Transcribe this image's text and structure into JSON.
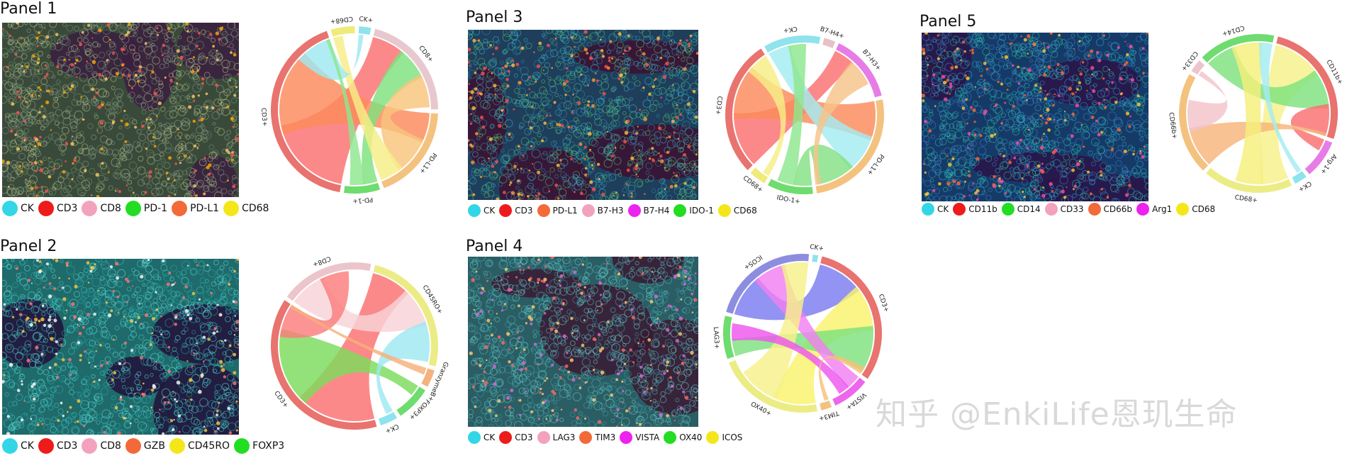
{
  "panels": [
    {
      "title": "Panel 1",
      "legend": [
        {
          "label": "CK",
          "color": "#33d6e6"
        },
        {
          "label": "CD3",
          "color": "#ee1b1b"
        },
        {
          "label": "CD8",
          "color": "#f3a2bd"
        },
        {
          "label": "PD-1",
          "color": "#22dd22"
        },
        {
          "label": "PD-L1",
          "color": "#f26a3a"
        },
        {
          "label": "CD68",
          "color": "#f5e619"
        }
      ],
      "chord_groups": [
        {
          "label": "CD8+",
          "color": "#e8c8cf",
          "value": 18
        },
        {
          "label": "PD-L1+",
          "color": "#f4c27f",
          "value": 16
        },
        {
          "label": "PD-1+",
          "color": "#6edc6e",
          "value": 6
        },
        {
          "label": "CD3+",
          "color": "#e8736f",
          "value": 36
        },
        {
          "label": "CD68+",
          "color": "#f0ea7a",
          "value": 4
        },
        {
          "label": "CK+",
          "color": "#8ee3ec",
          "value": 2
        }
      ],
      "chord_links": [
        {
          "from": 3,
          "to": 0,
          "color": "#fb6f6f"
        },
        {
          "from": 3,
          "to": 1,
          "color": "#fb8a5a"
        },
        {
          "from": 2,
          "to": 0,
          "color": "#7ee27e"
        },
        {
          "from": 1,
          "to": 0,
          "color": "#f9c47d"
        },
        {
          "from": 4,
          "to": 1,
          "color": "#f6ee86"
        },
        {
          "from": 5,
          "to": 3,
          "color": "#9fe8f0"
        },
        {
          "from": 2,
          "to": 3,
          "color": "#8ee68e"
        }
      ]
    },
    {
      "title": "Panel 2",
      "legend": [
        {
          "label": "CK",
          "color": "#33d6e6"
        },
        {
          "label": "CD3",
          "color": "#ee1b1b"
        },
        {
          "label": "CD8",
          "color": "#f3a2bd"
        },
        {
          "label": "GZB",
          "color": "#f26a3a"
        },
        {
          "label": "CD45RO",
          "color": "#f5e619"
        },
        {
          "label": "FOXP3",
          "color": "#22dd22"
        }
      ],
      "chord_groups": [
        {
          "label": "CD45RO+",
          "color": "#ecec86",
          "value": 22
        },
        {
          "label": "GranzymeB+",
          "color": "#f4b27f",
          "value": 3
        },
        {
          "label": "FOXP3+",
          "color": "#6edc6e",
          "value": 6
        },
        {
          "label": "CK+",
          "color": "#8ee3ec",
          "value": 3
        },
        {
          "label": "CD3+",
          "color": "#e8736f",
          "value": 34
        },
        {
          "label": "CD8+",
          "color": "#ecc5cc",
          "value": 16
        }
      ],
      "chord_links": [
        {
          "from": 4,
          "to": 0,
          "color": "#fb6f6f"
        },
        {
          "from": 5,
          "to": 0,
          "color": "#f8d3d8"
        },
        {
          "from": 4,
          "to": 2,
          "color": "#7bdc5b"
        },
        {
          "from": 4,
          "to": 5,
          "color": "#fb7d7d"
        },
        {
          "from": 3,
          "to": 0,
          "color": "#9fe8f0"
        },
        {
          "from": 1,
          "to": 4,
          "color": "#f7b07a"
        }
      ]
    },
    {
      "title": "Panel 3",
      "legend": [
        {
          "label": "CK",
          "color": "#33d6e6"
        },
        {
          "label": "CD3",
          "color": "#ee1b1b"
        },
        {
          "label": "PD-L1",
          "color": "#f26a3a"
        },
        {
          "label": "B7-H3",
          "color": "#f3a2bd"
        },
        {
          "label": "B7-H4",
          "color": "#ee22ee"
        },
        {
          "label": "IDO-1",
          "color": "#22dd22"
        },
        {
          "label": "CD68",
          "color": "#f5e619"
        }
      ],
      "chord_groups": [
        {
          "label": "B7-H4+",
          "color": "#e8c0c8",
          "value": 2
        },
        {
          "label": "B7-H3+",
          "color": "#e67de6",
          "value": 12
        },
        {
          "label": "PD-L1+",
          "color": "#f4c27f",
          "value": 22
        },
        {
          "label": "IDO-1+",
          "color": "#6edc6e",
          "value": 8
        },
        {
          "label": "CD68+",
          "color": "#f0ea7a",
          "value": 3
        },
        {
          "label": "CD3+",
          "color": "#e8736f",
          "value": 24
        },
        {
          "label": "CK+",
          "color": "#8ee3ec",
          "value": 10
        }
      ],
      "chord_links": [
        {
          "from": 5,
          "to": 1,
          "color": "#fb6f6f"
        },
        {
          "from": 5,
          "to": 2,
          "color": "#fb8a5a"
        },
        {
          "from": 6,
          "to": 2,
          "color": "#a3ecf2"
        },
        {
          "from": 3,
          "to": 2,
          "color": "#84e084"
        },
        {
          "from": 1,
          "to": 2,
          "color": "#f5c388"
        },
        {
          "from": 4,
          "to": 5,
          "color": "#f6ee86"
        },
        {
          "from": 3,
          "to": 6,
          "color": "#8ee68e"
        }
      ]
    },
    {
      "title": "Panel 4",
      "legend": [
        {
          "label": "CK",
          "color": "#33d6e6"
        },
        {
          "label": "CD3",
          "color": "#ee1b1b"
        },
        {
          "label": "LAG3",
          "color": "#f3a2bd"
        },
        {
          "label": "TIM3",
          "color": "#f26a3a"
        },
        {
          "label": "VISTA",
          "color": "#ee22ee"
        },
        {
          "label": "OX40",
          "color": "#22dd22"
        },
        {
          "label": "ICOS",
          "color": "#f5e619"
        }
      ],
      "chord_groups": [
        {
          "label": "CD3+",
          "color": "#e8736f",
          "value": 28
        },
        {
          "label": "VISTA+",
          "color": "#ee66ee",
          "value": 7
        },
        {
          "label": "TIM3+",
          "color": "#f4c27f",
          "value": 2
        },
        {
          "label": "OX40+",
          "color": "#ecec86",
          "value": 20
        },
        {
          "label": "LAG3+",
          "color": "#6edc6e",
          "value": 8
        },
        {
          "label": "ICOS+",
          "color": "#8d8de0",
          "value": 20
        },
        {
          "label": "CK+",
          "color": "#8ee3ec",
          "value": 1
        }
      ],
      "chord_links": [
        {
          "from": 5,
          "to": 0,
          "color": "#7b7bf0"
        },
        {
          "from": 3,
          "to": 0,
          "color": "#f9f36b"
        },
        {
          "from": 4,
          "to": 0,
          "color": "#7ee27e"
        },
        {
          "from": 1,
          "to": 5,
          "color": "#f27ff2"
        },
        {
          "from": 3,
          "to": 5,
          "color": "#f6f08a"
        },
        {
          "from": 4,
          "to": 1,
          "color": "#ee55ee"
        },
        {
          "from": 2,
          "to": 0,
          "color": "#f7c07a"
        }
      ]
    },
    {
      "title": "Panel 5",
      "legend": [
        {
          "label": "CK",
          "color": "#33d6e6"
        },
        {
          "label": "CD11b",
          "color": "#ee1b1b"
        },
        {
          "label": "CD14",
          "color": "#22dd22"
        },
        {
          "label": "CD33",
          "color": "#f3a2bd"
        },
        {
          "label": "CD66b",
          "color": "#f26a3a"
        },
        {
          "label": "Arg1",
          "color": "#ee22ee"
        },
        {
          "label": "CD68",
          "color": "#f5e619"
        }
      ],
      "chord_groups": [
        {
          "label": "CD11b+",
          "color": "#e8736f",
          "value": 20
        },
        {
          "label": "Arg-1+",
          "color": "#e67de6",
          "value": 6
        },
        {
          "label": "CK+",
          "color": "#8ee3ec",
          "value": 2
        },
        {
          "label": "CD68+",
          "color": "#ecec86",
          "value": 14
        },
        {
          "label": "CD66b+",
          "color": "#f4c27f",
          "value": 16
        },
        {
          "label": "CD33+",
          "color": "#ecc5cc",
          "value": 2
        },
        {
          "label": "CD14+",
          "color": "#6edc6e",
          "value": 12
        }
      ],
      "chord_links": [
        {
          "from": 0,
          "to": 3,
          "color": "#f6f08a"
        },
        {
          "from": 6,
          "to": 0,
          "color": "#7ee27e"
        },
        {
          "from": 0,
          "to": 1,
          "color": "#fb6f6f"
        },
        {
          "from": 4,
          "to": 0,
          "color": "#f7b57a"
        },
        {
          "from": 6,
          "to": 3,
          "color": "#f5ef7a"
        },
        {
          "from": 5,
          "to": 4,
          "color": "#f3c3cb"
        },
        {
          "from": 2,
          "to": 6,
          "color": "#a3ecf2"
        }
      ]
    }
  ],
  "watermark": "知乎 @EnkiLife恩玑生命"
}
